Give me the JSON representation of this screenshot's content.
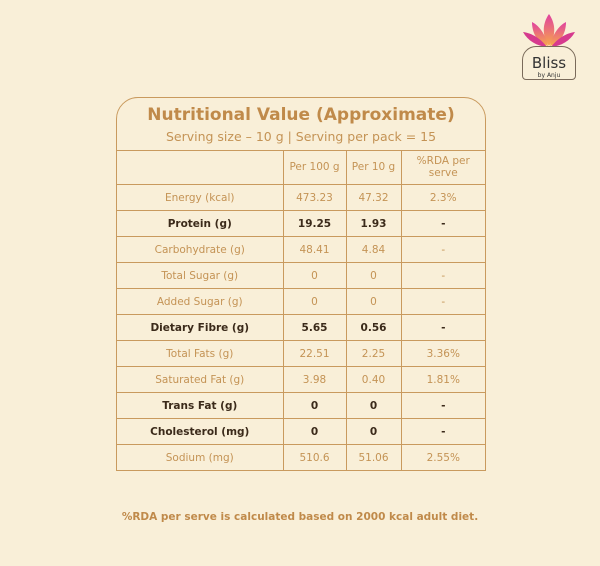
{
  "logo": {
    "name": "Bliss",
    "tagline": "by Anju"
  },
  "header": {
    "title": "Nutritional Value (Approximate)",
    "subtitle": "Serving size – 10 g | Serving per pack = 15"
  },
  "table": {
    "columns": [
      "Per 100 g",
      "Per 10 g",
      "%RDA per serve"
    ],
    "rows": [
      {
        "label": "Energy (kcal)",
        "cells": [
          "473.23",
          "47.32",
          "2.3%"
        ],
        "bold": false
      },
      {
        "label": "Protein (g)",
        "cells": [
          "19.25",
          "1.93",
          "-"
        ],
        "bold": true
      },
      {
        "label": "Carbohydrate (g)",
        "cells": [
          "48.41",
          "4.84",
          "-"
        ],
        "bold": false
      },
      {
        "label": "Total Sugar (g)",
        "cells": [
          "0",
          "0",
          "-"
        ],
        "bold": false
      },
      {
        "label": "Added Sugar (g)",
        "cells": [
          "0",
          "0",
          "-"
        ],
        "bold": false
      },
      {
        "label": "Dietary Fibre (g)",
        "cells": [
          "5.65",
          "0.56",
          "-"
        ],
        "bold": true
      },
      {
        "label": "Total Fats (g)",
        "cells": [
          "22.51",
          "2.25",
          "3.36%"
        ],
        "bold": false
      },
      {
        "label": "Saturated Fat (g)",
        "cells": [
          "3.98",
          "0.40",
          "1.81%"
        ],
        "bold": false
      },
      {
        "label": "Trans Fat (g)",
        "cells": [
          "0",
          "0",
          "-"
        ],
        "bold": true
      },
      {
        "label": "Cholesterol (mg)",
        "cells": [
          "0",
          "0",
          "-"
        ],
        "bold": true
      },
      {
        "label": "Sodium (mg)",
        "cells": [
          "510.6",
          "51.06",
          "2.55%"
        ],
        "bold": false
      }
    ]
  },
  "footnote": "%RDA per serve is calculated based on 2000 kcal adult diet."
}
